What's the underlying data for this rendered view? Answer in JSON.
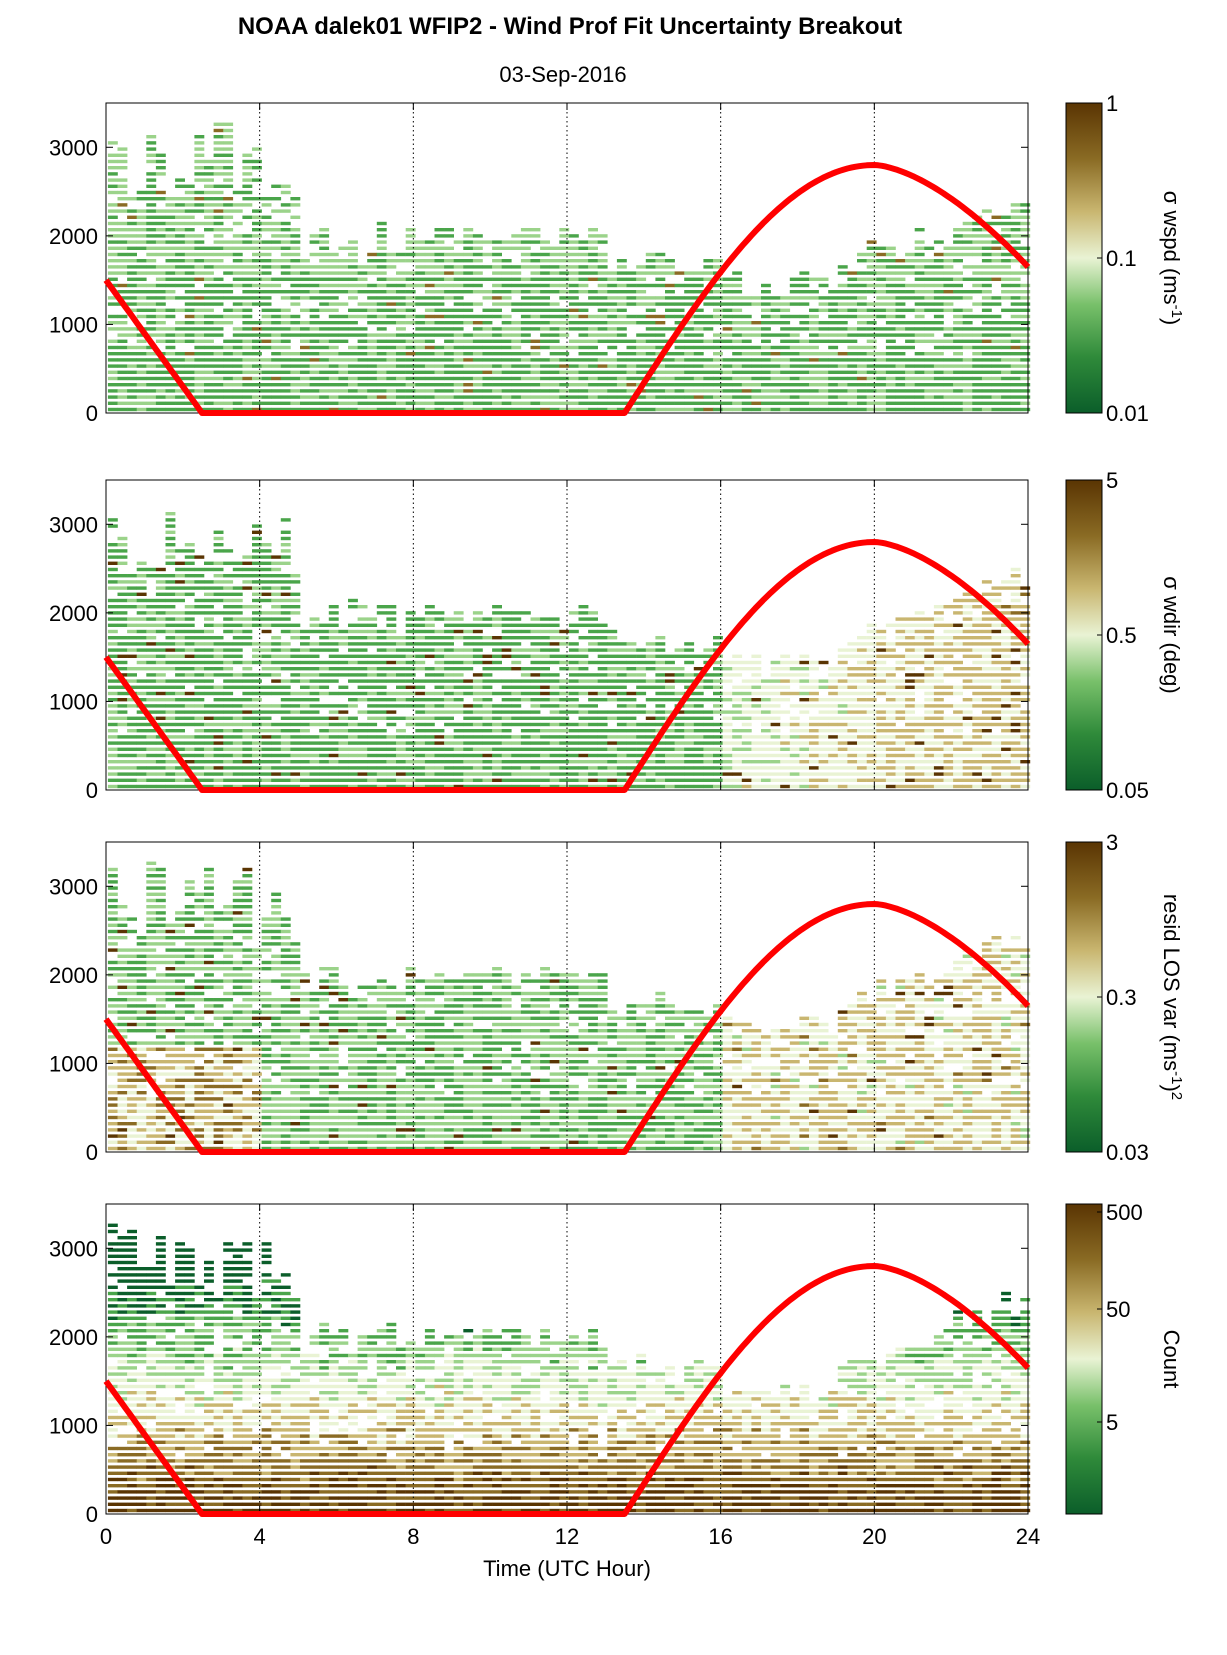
{
  "title": "NOAA dalek01 WFIP2 - Wind Prof Fit Uncertainty Breakout",
  "subtitle": "03-Sep-2016",
  "colors": {
    "green_dark": "#0b5e2a",
    "green_mid": "#4aa54a",
    "green_light": "#9bd38a",
    "pale": "#e9f3d4",
    "tan": "#c9b670",
    "brown_mid": "#8a6b24",
    "brown_dark": "#5a3503",
    "solar_line": "#ff0000"
  },
  "chart_data": [
    {
      "type": "heatmap",
      "id": "wspd",
      "xlabel": "",
      "ylabel": "",
      "x_range": [
        0,
        24
      ],
      "y_range": [
        0,
        3500
      ],
      "xticks": [
        "0",
        "4",
        "8",
        "12",
        "16",
        "20",
        "24"
      ],
      "yticks": [
        "0",
        "1000",
        "2000",
        "3000"
      ],
      "colorbar": {
        "label": "σ wspd (ms",
        "label_sup": "-1",
        "label_end": ")",
        "scale": "log",
        "ticks": [
          "1",
          "0.1",
          "0.01"
        ],
        "range": [
          0.01,
          1
        ]
      },
      "vertical_gridlines_at": [
        4,
        8,
        12,
        16,
        20
      ],
      "overlay_line": {
        "x": [
          0,
          2.5,
          13.5,
          20,
          24
        ],
        "y": [
          1500,
          0,
          0,
          2800,
          1650
        ]
      }
    },
    {
      "type": "heatmap",
      "id": "wdir",
      "xlabel": "",
      "ylabel": "",
      "x_range": [
        0,
        24
      ],
      "y_range": [
        0,
        3500
      ],
      "xticks": [
        "0",
        "4",
        "8",
        "12",
        "16",
        "20",
        "24"
      ],
      "yticks": [
        "0",
        "1000",
        "2000",
        "3000"
      ],
      "colorbar": {
        "label": "σ wdir (deg)",
        "scale": "log",
        "ticks": [
          "5",
          "0.5",
          "0.05"
        ],
        "range": [
          0.05,
          5
        ]
      },
      "vertical_gridlines_at": [
        4,
        8,
        12,
        16,
        20
      ],
      "overlay_line": {
        "x": [
          0,
          2.5,
          13.5,
          20,
          24
        ],
        "y": [
          1500,
          0,
          0,
          2800,
          1650
        ]
      }
    },
    {
      "type": "heatmap",
      "id": "resid",
      "xlabel": "",
      "ylabel": "",
      "x_range": [
        0,
        24
      ],
      "y_range": [
        0,
        3500
      ],
      "xticks": [
        "0",
        "4",
        "8",
        "12",
        "16",
        "20",
        "24"
      ],
      "yticks": [
        "0",
        "1000",
        "2000",
        "3000"
      ],
      "colorbar": {
        "label": "resid LOS var (ms",
        "label_sup": "-1",
        "label_end": ")",
        "label_sup2": "2",
        "scale": "log",
        "ticks": [
          "3",
          "0.3",
          "0.03"
        ],
        "range": [
          0.03,
          3
        ]
      },
      "vertical_gridlines_at": [
        4,
        8,
        12,
        16,
        20
      ],
      "overlay_line": {
        "x": [
          0,
          2.5,
          13.5,
          20,
          24
        ],
        "y": [
          1500,
          0,
          0,
          2800,
          1650
        ]
      }
    },
    {
      "type": "heatmap",
      "id": "count",
      "xlabel": "Time (UTC Hour)",
      "ylabel": "",
      "x_range": [
        0,
        24
      ],
      "y_range": [
        0,
        3500
      ],
      "xticks": [
        "0",
        "4",
        "8",
        "12",
        "16",
        "20",
        "24"
      ],
      "yticks": [
        "0",
        "1000",
        "2000",
        "3000"
      ],
      "colorbar": {
        "label": "Count",
        "scale": "log",
        "ticks": [
          "500",
          "50",
          "5"
        ],
        "range": [
          1,
          500
        ]
      },
      "vertical_gridlines_at": [
        4,
        8,
        12,
        16,
        20
      ],
      "overlay_line": {
        "x": [
          0,
          2.5,
          13.5,
          20,
          24
        ],
        "y": [
          1500,
          0,
          0,
          2800,
          1650
        ]
      }
    }
  ]
}
